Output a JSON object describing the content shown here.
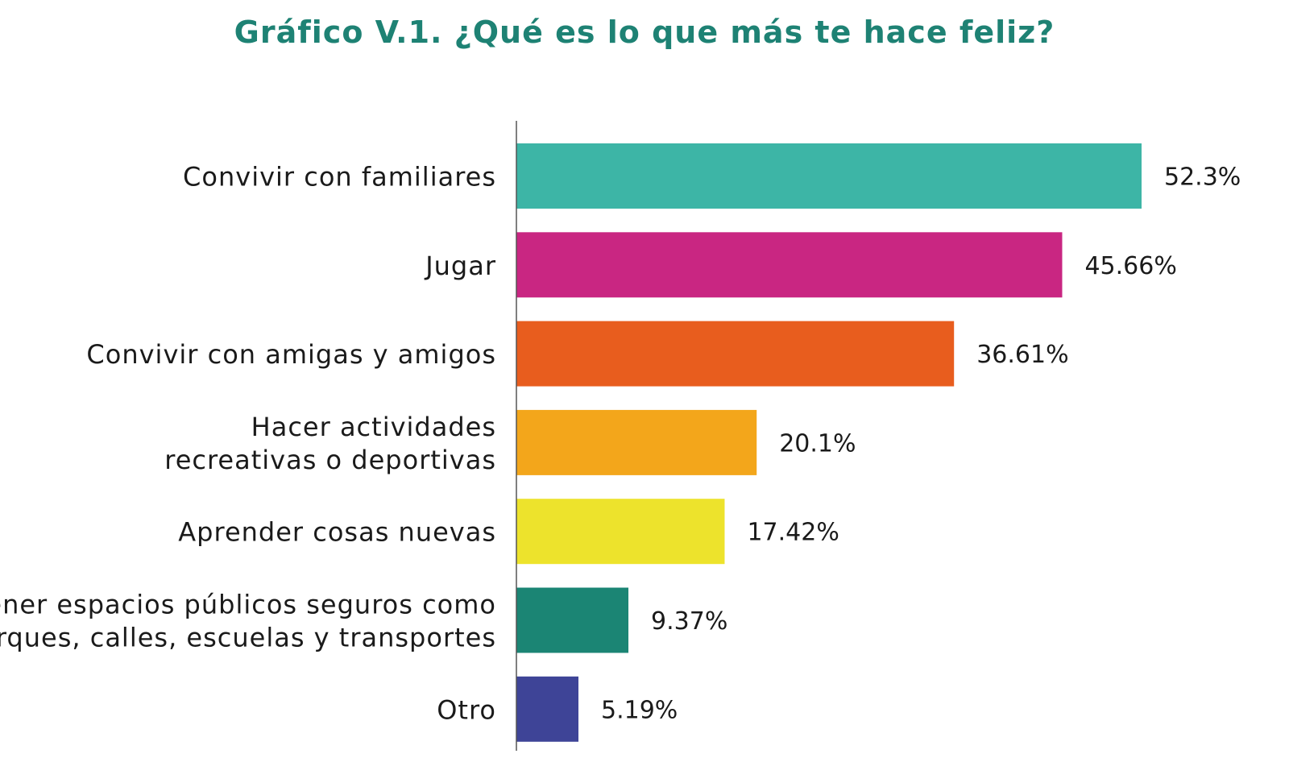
{
  "chart_data": {
    "type": "bar",
    "orientation": "horizontal",
    "title": "Gráfico V.1. ¿Qué es lo que más te hace feliz?",
    "xlabel": "",
    "ylabel": "",
    "xlim": [
      0,
      55
    ],
    "grid": false,
    "legend": "none",
    "categories": [
      [
        "Convivir con familiares"
      ],
      [
        "Jugar"
      ],
      [
        "Convivir con amigas y amigos"
      ],
      [
        "Hacer actividades",
        "recreativas o deportivas"
      ],
      [
        "Aprender cosas nuevas"
      ],
      [
        "Tener espacios públicos seguros como",
        "parques, calles, escuelas y transportes"
      ],
      [
        "Otro"
      ]
    ],
    "values": [
      52.3,
      45.66,
      36.61,
      20.1,
      17.42,
      9.37,
      5.19
    ],
    "value_labels": [
      "52.3%",
      "45.66%",
      "36.61%",
      "20.1%",
      "17.42%",
      "9.37%",
      "5.19%"
    ],
    "colors": [
      "#3db5a6",
      "#c92682",
      "#e85d1e",
      "#f3a61b",
      "#ede32c",
      "#1b8574",
      "#3e4497"
    ]
  }
}
